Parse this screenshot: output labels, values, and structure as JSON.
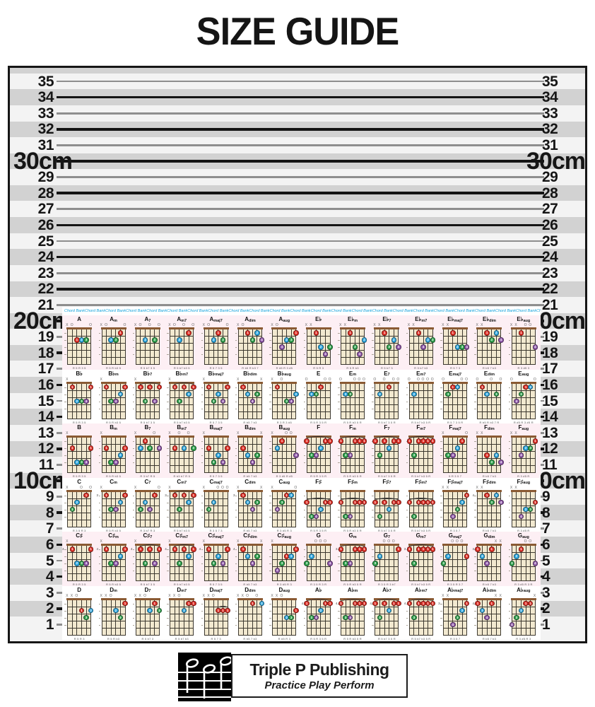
{
  "title": "SIZE GUIDE",
  "ruler": {
    "unit": "cm",
    "numbers": [
      35,
      34,
      33,
      32,
      31,
      30,
      29,
      28,
      27,
      26,
      25,
      24,
      23,
      22,
      21,
      20,
      19,
      18,
      17,
      16,
      15,
      14,
      13,
      12,
      11,
      10,
      9,
      8,
      7,
      6,
      5,
      4,
      3,
      2,
      1
    ],
    "major_numbers": [
      30,
      20,
      10
    ],
    "colors": {
      "stripe_dark": "#d2d2d2",
      "stripe_light": "#f3f3f3",
      "line_major": "#141414",
      "line_minor": "#8e8e8e",
      "border": "#161616",
      "number_text": "#161616"
    }
  },
  "chart": {
    "watermark_text": "Chord Bank",
    "watermark_repeat": 28,
    "colors": {
      "watermark_blue": "#14a3dc",
      "row_pink": "#fdeff4",
      "row_white": "#ffffff",
      "board_cream": "#f2e9d0",
      "nut_brown": "#8a5a33",
      "grid": "#3c382f",
      "finger_1_red": "#e03128",
      "finger_2_blue": "#2ea7df",
      "finger_3_green": "#2fa14d",
      "finger_4_purple": "#9059aa"
    },
    "suffixes": [
      "",
      "m",
      "7",
      "m7",
      "maj7",
      "dim",
      "aug"
    ],
    "rows": [
      {
        "left_root": "A",
        "right_root": "E♭",
        "left": [
          {
            "s": "",
            "f": "x02220",
            "fi": "001230",
            "iv": "R 5 R 3 5"
          },
          {
            "s": "m",
            "f": "x02210",
            "fi": "002310",
            "iv": "R 5 R b3 5"
          },
          {
            "s": "7",
            "f": "x02020",
            "fi": "002030",
            "iv": "R 5 b7 3 5"
          },
          {
            "s": "m7",
            "f": "x02010",
            "fi": "002010",
            "iv": "R 5 b7 b3 5"
          },
          {
            "s": "maj7",
            "f": "x02120",
            "fi": "002130",
            "iv": "R 5 7 3 5"
          },
          {
            "s": "dim",
            "f": "x01212",
            "fi": "001324",
            "iv": "R b5 R b3 7"
          },
          {
            "s": "aug",
            "f": "x03221",
            "fi": "004231",
            "iv": "R #5 R 3 #5"
          }
        ],
        "right": [
          {
            "s": "",
            "f": "xx1343",
            "fi": "001243",
            "iv": "R 5 R 3"
          },
          {
            "s": "m",
            "f": "xx1342",
            "fi": "001342",
            "iv": "R 5 R b3"
          },
          {
            "s": "7",
            "f": "xx1323",
            "fi": "001324",
            "iv": "R 5 b7 3"
          },
          {
            "s": "m7",
            "f": "xx1322",
            "fi": "001423",
            "iv": "R 5 b7 b3"
          },
          {
            "s": "maj7",
            "f": "xx1333",
            "fi": "001234",
            "iv": "R 5 7 3"
          },
          {
            "s": "dim",
            "f": "xx1212",
            "fi": "001324",
            "iv": "R b5 7 b3"
          },
          {
            "s": "aug",
            "f": "xx1003",
            "fi": "001004",
            "iv": "R 3 #5 3"
          }
        ]
      },
      {
        "left_root": "B♭",
        "right_root": "E",
        "left": [
          {
            "s": "",
            "f": "x13331",
            "fi": "012341",
            "iv": "R 5 R 3 5"
          },
          {
            "s": "m",
            "f": "x13321",
            "fi": "013421",
            "iv": "R 5 R b3 5"
          },
          {
            "s": "7",
            "f": "x13131",
            "fi": "013141",
            "iv": "R 5 b7 3 5"
          },
          {
            "s": "m7",
            "f": "x13121",
            "fi": "013121",
            "iv": "R 5 b7 b3 5"
          },
          {
            "s": "maj7",
            "f": "x13231",
            "fi": "013241",
            "iv": "R 5 7 3 5"
          },
          {
            "s": "dim",
            "f": "x1232x",
            "fi": "012430",
            "iv": "R b5 7 b3"
          },
          {
            "s": "aug",
            "f": "x10332",
            "fi": "010342",
            "iv": "R 3 R 3 #5"
          }
        ],
        "right": [
          {
            "s": "",
            "f": "022100",
            "fi": "023100",
            "iv": "R 5 R 3 5 R"
          },
          {
            "s": "m",
            "f": "022000",
            "fi": "023000",
            "iv": "R 5 R b3 5 R"
          },
          {
            "s": "7",
            "f": "020100",
            "fi": "020100",
            "iv": "R 5 b7 3 5 R"
          },
          {
            "s": "m7",
            "f": "020000",
            "fi": "020000",
            "iv": "R 5 b7 b3 5 R"
          },
          {
            "s": "maj7",
            "f": "021100",
            "fi": "031200",
            "iv": "R 5 7 3 5 R"
          },
          {
            "s": "dim",
            "f": "012020",
            "fi": "012030",
            "iv": "R b5 R b3 7 R"
          },
          {
            "s": "aug",
            "f": "032110",
            "fi": "043120",
            "iv": "R #5 R 3 #5 R"
          }
        ]
      },
      {
        "left_root": "B",
        "right_root": "F",
        "left": [
          {
            "s": "",
            "f": "x24442",
            "fi": "012341",
            "iv": "R 5 R 3 5"
          },
          {
            "s": "m",
            "f": "x24432",
            "fi": "013421",
            "iv": "R 5 R b3 5"
          },
          {
            "s": "7",
            "f": "x21202",
            "fi": "021304",
            "iv": "R 3 b7 R 5"
          },
          {
            "s": "m7",
            "f": "x20202",
            "fi": "010203",
            "iv": "R b3 b7 R 5"
          },
          {
            "s": "maj7",
            "f": "x24342",
            "fi": "013241",
            "iv": "R 5 7 3 5"
          },
          {
            "s": "dim",
            "f": "x2343x",
            "fi": "012430",
            "iv": "R b5 7 b3"
          },
          {
            "s": "aug",
            "f": "x21003",
            "fi": "021004",
            "iv": "R 3 #5 R #5"
          }
        ],
        "right": [
          {
            "s": "",
            "f": "133211",
            "fi": "134211",
            "iv": "R 5 R 3 5 R"
          },
          {
            "s": "m",
            "f": "133111",
            "fi": "134111",
            "iv": "R 5 R b3 5 R"
          },
          {
            "s": "7",
            "f": "131211",
            "fi": "131211",
            "iv": "R 5 b7 3 5 R"
          },
          {
            "s": "m7",
            "f": "131111",
            "fi": "131111",
            "iv": "R 5 b7 b3 5 R"
          },
          {
            "s": "maj7",
            "f": "x33210",
            "fi": "034210",
            "iv": "5 R 3 5 7"
          },
          {
            "s": "dim",
            "f": "xx3434",
            "fi": "001324",
            "iv": "R b5 7 b3"
          },
          {
            "s": "aug",
            "f": "xx3221",
            "fi": "004231",
            "iv": "R 3 #5 R"
          }
        ]
      },
      {
        "left_root": "C",
        "right_root": "F♯",
        "left": [
          {
            "s": "",
            "f": "x32010",
            "fi": "032010",
            "iv": "R 3 5 R 3"
          },
          {
            "s": "m",
            "f": "x35543",
            "fi": "013421",
            "iv": "R 5 R b3 5"
          },
          {
            "s": "7",
            "f": "x32310",
            "fi": "032410",
            "iv": "R 3 b7 R 3"
          },
          {
            "s": "m7",
            "f": "x35343",
            "fi": "013121",
            "iv": "R 5 b7 b3 5"
          },
          {
            "s": "maj7",
            "f": "x32000",
            "fi": "032000",
            "iv": "R 3 5 7 3"
          },
          {
            "s": "dim",
            "f": "x3454x",
            "fi": "012430",
            "iv": "R b5 7 b3"
          },
          {
            "s": "aug",
            "f": "x32110",
            "fi": "043120",
            "iv": "R 3 #5 R 3"
          }
        ],
        "right": [
          {
            "s": "",
            "f": "244322",
            "fi": "134211",
            "iv": "R 5 R 3 5 R"
          },
          {
            "s": "m",
            "f": "244222",
            "fi": "134111",
            "iv": "R 5 R b3 5 R"
          },
          {
            "s": "7",
            "f": "242322",
            "fi": "131211",
            "iv": "R 5 b7 3 5 R"
          },
          {
            "s": "m7",
            "f": "242222",
            "fi": "131111",
            "iv": "R 5 b7 b3 5 R"
          },
          {
            "s": "maj7",
            "f": "xx4321",
            "fi": "004321",
            "iv": "R 3 5 7"
          },
          {
            "s": "dim",
            "f": "xx4545",
            "fi": "001324",
            "iv": "R b5 7 b3"
          },
          {
            "s": "aug",
            "f": "xx4332",
            "fi": "004231",
            "iv": "R 3 #5 R"
          }
        ]
      },
      {
        "left_root": "C♯",
        "right_root": "G",
        "left": [
          {
            "s": "",
            "f": "x46664",
            "fi": "012341",
            "iv": "R 5 R 3 5"
          },
          {
            "s": "m",
            "f": "x46654",
            "fi": "013421",
            "iv": "R 5 R b3 5"
          },
          {
            "s": "7",
            "f": "x46464",
            "fi": "013141",
            "iv": "R 5 b7 3 5"
          },
          {
            "s": "m7",
            "f": "x46454",
            "fi": "013121",
            "iv": "R 5 b7 b3 5"
          },
          {
            "s": "maj7",
            "f": "x46564",
            "fi": "013241",
            "iv": "R 5 7 3 5"
          },
          {
            "s": "dim",
            "f": "x4565x",
            "fi": "012430",
            "iv": "R b5 7 b3"
          },
          {
            "s": "aug",
            "f": "x43221",
            "fi": "043121",
            "iv": "R 3 #5 R 3"
          }
        ],
        "right": [
          {
            "s": "",
            "f": "320003",
            "fi": "320004",
            "iv": "R 3 5 R 3 R"
          },
          {
            "s": "m",
            "f": "355333",
            "fi": "134111",
            "iv": "R 5 R b3 5 R"
          },
          {
            "s": "7",
            "f": "320001",
            "fi": "320001",
            "iv": "R 3 5 R 3 b7"
          },
          {
            "s": "m7",
            "f": "353333",
            "fi": "131111",
            "iv": "R 5 b7 b3 5 R"
          },
          {
            "s": "maj7",
            "f": "320002",
            "fi": "320001",
            "iv": "R 3 5 R 3 7"
          },
          {
            "s": "dim",
            "f": "3453xx",
            "fi": "124100",
            "iv": "R b5 7 b3"
          },
          {
            "s": "aug",
            "f": "321003",
            "fi": "321004",
            "iv": "R 3 #5 R 3 R"
          }
        ]
      },
      {
        "left_root": "D",
        "right_root": "A♭",
        "left": [
          {
            "s": "",
            "f": "xx0232",
            "fi": "000132",
            "iv": "R 5 R 3"
          },
          {
            "s": "m",
            "f": "xx0231",
            "fi": "000231",
            "iv": "R 5 R b3"
          },
          {
            "s": "7",
            "f": "xx0212",
            "fi": "000213",
            "iv": "R 5 b7 3"
          },
          {
            "s": "m7",
            "f": "xx0211",
            "fi": "000211",
            "iv": "R 5 b7 b3"
          },
          {
            "s": "maj7",
            "f": "xx0222",
            "fi": "000111",
            "iv": "R 5 7 3"
          },
          {
            "s": "dim",
            "f": "xx0101",
            "fi": "000102",
            "iv": "R b5 7 b3"
          },
          {
            "s": "aug",
            "f": "xx0332",
            "fi": "000231",
            "iv": "R #5 R 3"
          }
        ],
        "right": [
          {
            "s": "",
            "f": "466544",
            "fi": "134211",
            "iv": "R 5 R 3 5 R"
          },
          {
            "s": "m",
            "f": "466444",
            "fi": "134111",
            "iv": "R 5 R b3 5 R"
          },
          {
            "s": "7",
            "f": "464544",
            "fi": "131211",
            "iv": "R 5 b7 3 5 R"
          },
          {
            "s": "m7",
            "f": "464444",
            "fi": "131111",
            "iv": "R 5 b7 b3 5 R"
          },
          {
            "s": "maj7",
            "f": "xx6543",
            "fi": "004321",
            "iv": "R 3 5 7"
          },
          {
            "s": "dim",
            "f": "4564xx",
            "fi": "124100",
            "iv": "R b5 7 b3"
          },
          {
            "s": "aug",
            "f": "43211x",
            "fi": "432110",
            "iv": "R 3 #5 R 3"
          }
        ]
      }
    ]
  },
  "footer": {
    "publisher": "Triple P Publishing",
    "tagline": "Practice Play Perform"
  }
}
